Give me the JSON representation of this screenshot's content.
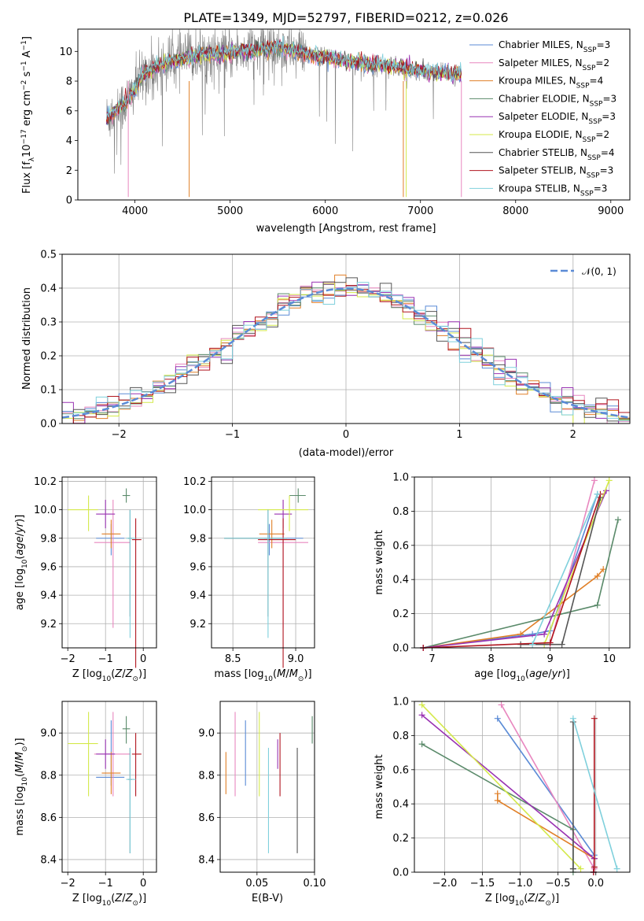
{
  "title": "PLATE=1349, MJD=52797, FIBERID=0212, z=0.026",
  "series": [
    {
      "name": "Chabrier MILES, N",
      "sub": "SSP",
      "n": "=3",
      "color": "#5b8bd6",
      "age": 9.8,
      "age_err": [
        0.12,
        0.1
      ],
      "Z": -0.85,
      "Z_err": [
        0.4,
        0.35
      ],
      "mass": 8.79,
      "mass_err": [
        0.04,
        0.27
      ],
      "ebv": 0.04,
      "ebv_err": [
        0.3,
        0.13
      ],
      "weights": [
        {
          "age": 6.85,
          "Z": -0.03,
          "w": 0.0
        },
        {
          "age": 8.7,
          "Z": -0.02,
          "w": 0.08
        },
        {
          "age": 9.0,
          "Z": -0.02,
          "w": 0.1
        },
        {
          "age": 9.8,
          "Z": -1.3,
          "w": 0.9
        }
      ]
    },
    {
      "name": "Salpeter MILES, N",
      "sub": "SSP",
      "n": "=2",
      "color": "#e887bf",
      "age": 9.77,
      "age_err": [
        0.6,
        0.3
      ],
      "Z": -0.8,
      "Z_err": [
        0.5,
        0.45
      ],
      "mass": 8.9,
      "mass_err": [
        0.2,
        0.2
      ],
      "ebv": 0.031,
      "ebv_err": [
        0.3,
        0.1
      ],
      "weights": [
        {
          "age": 9.0,
          "Z": -0.02,
          "w": 0.02
        },
        {
          "age": 9.75,
          "Z": -1.25,
          "w": 0.98
        }
      ]
    },
    {
      "name": "Kroupa MILES, N",
      "sub": "SSP",
      "n": "=4",
      "color": "#e07f27",
      "age": 9.83,
      "age_err": [
        0.1,
        0.1
      ],
      "Z": -0.85,
      "Z_err": [
        0.25,
        0.25
      ],
      "mass": 8.81,
      "mass_err": [
        0.1,
        0.1
      ],
      "ebv": 0.023,
      "ebv_err": [
        0.1,
        0.23
      ],
      "weights": [
        {
          "age": 6.85,
          "Z": -0.03,
          "w": 0.0
        },
        {
          "age": 8.5,
          "Z": -0.02,
          "w": 0.08
        },
        {
          "age": 9.8,
          "Z": -1.3,
          "w": 0.42
        },
        {
          "age": 9.9,
          "Z": -1.3,
          "w": 0.46
        }
      ]
    },
    {
      "name": "Chabrier ELODIE, N",
      "sub": "SSP",
      "n": "=3",
      "color": "#5a8a6a",
      "age": 10.1,
      "age_err": [
        0.05,
        0.05
      ],
      "Z": -0.45,
      "Z_err": [
        0.1,
        0.1
      ],
      "mass": 9.02,
      "mass_err": [
        0.07,
        0.06
      ],
      "ebv": 0.098,
      "ebv_err": [
        0.15,
        0.1
      ],
      "weights": [
        {
          "age": 6.85,
          "Z": -0.3,
          "w": 0.0
        },
        {
          "age": 9.8,
          "Z": -0.3,
          "w": 0.25
        },
        {
          "age": 10.15,
          "Z": -2.3,
          "w": 0.75
        }
      ]
    },
    {
      "name": "Salpeter ELODIE, N",
      "sub": "SSP",
      "n": "=3",
      "color": "#9932b2",
      "age": 9.97,
      "age_err": [
        0.1,
        0.1
      ],
      "Z": -1.0,
      "Z_err": [
        0.25,
        0.25
      ],
      "mass": 8.9,
      "mass_err": [
        0.07,
        0.07
      ],
      "ebv": 0.068,
      "ebv_err": [
        0.1,
        0.23
      ],
      "weights": [
        {
          "age": 6.85,
          "Z": -0.03,
          "w": 0.0
        },
        {
          "age": 8.9,
          "Z": -0.02,
          "w": 0.08
        },
        {
          "age": 9.95,
          "Z": -2.3,
          "w": 0.92
        }
      ]
    },
    {
      "name": "Kroupa ELODIE, N",
      "sub": "SSP",
      "n": "=2",
      "color": "#d4e94a",
      "age": 10.0,
      "age_err": [
        0.15,
        0.1
      ],
      "Z": -1.45,
      "Z_err": [
        0.55,
        0.25
      ],
      "mass": 8.95,
      "mass_err": [
        0.25,
        0.15
      ],
      "ebv": 0.052,
      "ebv_err": [
        0.55,
        0.25
      ],
      "weights": [
        {
          "age": 8.9,
          "Z": -0.2,
          "w": 0.02
        },
        {
          "age": 10.0,
          "Z": -2.3,
          "w": 0.98
        }
      ]
    },
    {
      "name": "Chabrier STELIB, N",
      "sub": "SSP",
      "n": "=4",
      "color": "#555555",
      "age": 9.8,
      "age_err": [
        0.55,
        0.2
      ],
      "Z": -0.35,
      "Z_err": [
        0.05,
        0.05
      ],
      "mass": 8.78,
      "mass_err": [
        0.35,
        0.15
      ],
      "ebv": 0.085,
      "ebv_err": [
        0.3,
        0.15
      ],
      "weights": [
        {
          "age": 8.5,
          "Z": -0.3,
          "w": 0.02
        },
        {
          "age": 9.2,
          "Z": -0.3,
          "w": 0.02
        },
        {
          "age": 9.85,
          "Z": -0.3,
          "w": 0.88
        }
      ]
    },
    {
      "name": "Salpeter STELIB, N",
      "sub": "SSP",
      "n": "=3",
      "color": "#b0141e",
      "age": 9.79,
      "age_err": [
        0.9,
        0.15
      ],
      "Z": -0.2,
      "Z_err": [
        0.1,
        0.15
      ],
      "mass": 8.9,
      "mass_err": [
        0.2,
        0.1
      ],
      "ebv": 0.07,
      "ebv_err": [
        0.2,
        0.1
      ],
      "weights": [
        {
          "age": 6.85,
          "Z": -0.03,
          "w": 0.0
        },
        {
          "age": 9.0,
          "Z": -0.02,
          "w": 0.03
        },
        {
          "age": 9.85,
          "Z": -0.02,
          "w": 0.9
        }
      ]
    },
    {
      "name": "Kroupa STELIB, N",
      "sub": "SSP",
      "n": "=3",
      "color": "#7fd0dc",
      "age": 9.8,
      "age_err": [
        0.7,
        0.2
      ],
      "Z": -0.35,
      "Z_err": [
        0.1,
        0.15
      ],
      "mass": 8.78,
      "mass_err": [
        0.35,
        0.15
      ],
      "ebv": 0.06,
      "ebv_err": [
        0.3,
        0.15
      ],
      "weights": [
        {
          "age": 8.7,
          "Z": 0.28,
          "w": 0.02
        },
        {
          "age": 9.8,
          "Z": -0.3,
          "w": 0.9
        }
      ]
    }
  ],
  "chart_data": [
    {
      "type": "line",
      "title": "PLATE=1349, MJD=52797, FIBERID=0212, z=0.026",
      "xlabel": "wavelength [Angstrom, rest frame]",
      "ylabel_main": "Flux [f",
      "xlim": [
        3400,
        9200
      ],
      "ylim": [
        0,
        11.5
      ],
      "xticks": [
        "4000",
        "5000",
        "6000",
        "7000",
        "8000",
        "9000"
      ],
      "yticks": [
        "0",
        "2",
        "4",
        "6",
        "8",
        "10"
      ],
      "data_note": "observed spectrum (grey) plus 9 model fits; continuum pseudo-values",
      "continuum": [
        [
          3700,
          5.5
        ],
        [
          3800,
          6.0
        ],
        [
          3900,
          6.5
        ],
        [
          4000,
          7.5
        ],
        [
          4100,
          8.5
        ],
        [
          4300,
          9.2
        ],
        [
          4500,
          9.5
        ],
        [
          4700,
          9.8
        ],
        [
          4900,
          9.8
        ],
        [
          5100,
          10.0
        ],
        [
          5300,
          10.1
        ],
        [
          5500,
          10.3
        ],
        [
          5700,
          10.0
        ],
        [
          5900,
          9.7
        ],
        [
          6100,
          9.5
        ],
        [
          6300,
          9.3
        ],
        [
          6500,
          9.1
        ],
        [
          6700,
          9.0
        ],
        [
          6900,
          8.8
        ],
        [
          7100,
          8.6
        ],
        [
          7300,
          8.5
        ],
        [
          7430,
          8.4
        ]
      ]
    },
    {
      "type": "histogram",
      "xlabel": "(data-model)/error",
      "ylabel": "Normed distribution",
      "xlim": [
        -2.5,
        2.5
      ],
      "ylim": [
        0,
        0.5
      ],
      "xticks": [
        "−2",
        "−1",
        "0",
        "1",
        "2"
      ],
      "yticks": [
        "0.0",
        "0.1",
        "0.2",
        "0.3",
        "0.4",
        "0.5"
      ],
      "legend": "𝒩(0, 1)"
    },
    {
      "type": "scatter",
      "xlabel": "Z [log",
      "ylabel": "age  [log",
      "xlim": [
        -2.15,
        0.35
      ],
      "ylim": [
        9.03,
        10.23
      ],
      "xticks": [
        "−2",
        "−1",
        "0"
      ],
      "yticks": [
        "9.2",
        "9.4",
        "9.6",
        "9.8",
        "10.0",
        "10.2"
      ]
    },
    {
      "type": "scatter",
      "xlabel": "mass [log",
      "ylabel": "",
      "xlim": [
        8.33,
        9.15
      ],
      "ylim": [
        9.03,
        10.23
      ],
      "xticks": [
        "8.5",
        "9.0"
      ],
      "yticks": [
        "9.2",
        "9.4",
        "9.6",
        "9.8",
        "10.0",
        "10.2"
      ]
    },
    {
      "type": "line",
      "xlabel": "age  [log",
      "ylabel": "mass weight",
      "xlim": [
        6.7,
        10.35
      ],
      "ylim": [
        0,
        1.0
      ],
      "xticks": [
        "7",
        "8",
        "9",
        "10"
      ],
      "yticks": [
        "0.0",
        "0.2",
        "0.4",
        "0.6",
        "0.8",
        "1.0"
      ]
    },
    {
      "type": "scatter",
      "xlabel": "Z [log",
      "ylabel": "mass [log",
      "xlim": [
        -2.15,
        0.35
      ],
      "ylim": [
        8.34,
        9.15
      ],
      "xticks": [
        "−2",
        "−1",
        "0"
      ],
      "yticks": [
        "8.4",
        "8.6",
        "8.8",
        "9.0"
      ]
    },
    {
      "type": "scatter",
      "xlabel": "E(B-V)",
      "ylabel": "",
      "xlim": [
        0.018,
        0.1
      ],
      "ylim": [
        8.34,
        9.15
      ],
      "xticks": [
        "0.05",
        "0.10"
      ],
      "yticks": [
        "8.4",
        "8.6",
        "8.8",
        "9.0"
      ]
    },
    {
      "type": "line",
      "xlabel": "Z [log",
      "ylabel": "mass weight",
      "xlim": [
        -2.4,
        0.45
      ],
      "ylim": [
        0,
        1.0
      ],
      "xticks": [
        "−2.0",
        "−1.5",
        "−1.0",
        "−0.5",
        "0.0"
      ],
      "yticks": [
        "0.0",
        "0.2",
        "0.4",
        "0.6",
        "0.8",
        "1.0"
      ]
    }
  ],
  "legend_normal": "𝒩(0, 1)"
}
